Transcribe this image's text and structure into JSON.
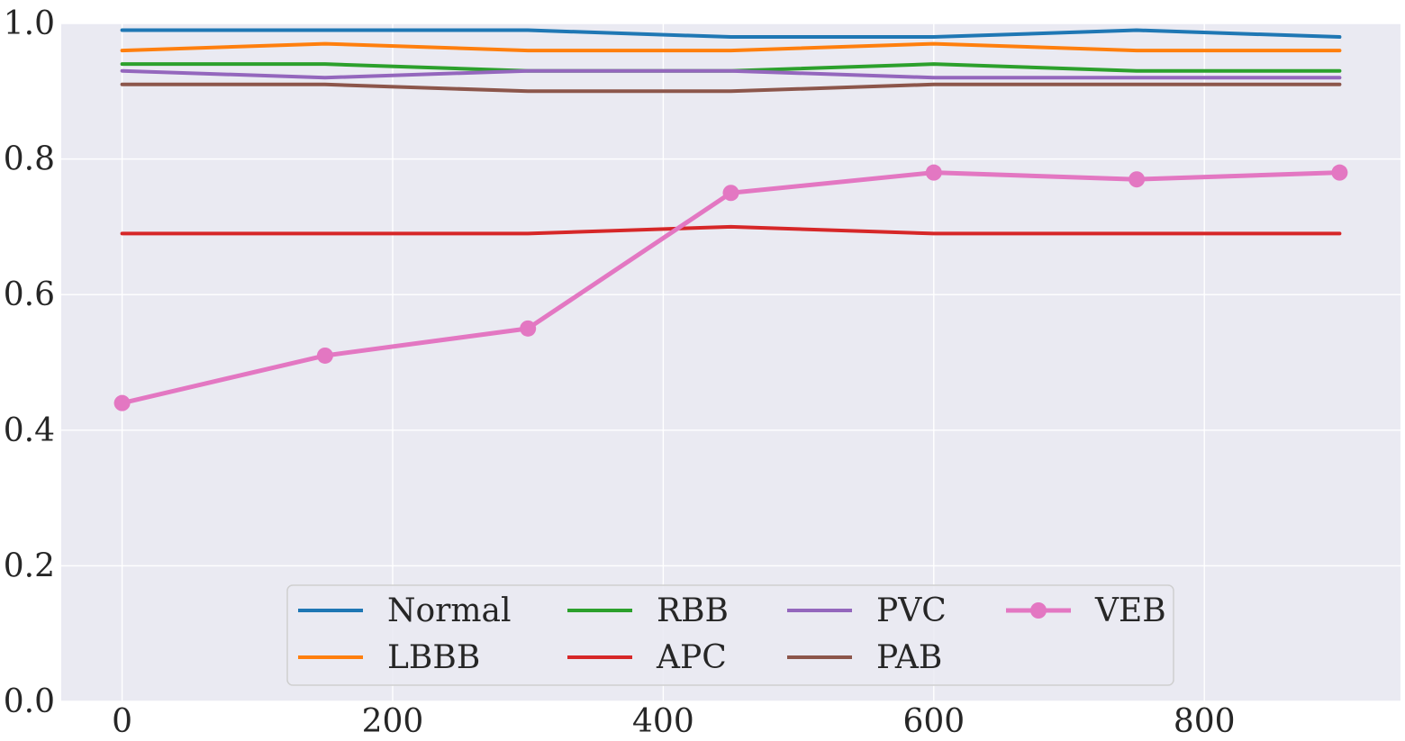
{
  "chart_data": {
    "type": "line",
    "title": "",
    "xlabel": "",
    "ylabel": "",
    "x": [
      0,
      150,
      300,
      450,
      600,
      750,
      900
    ],
    "xlim": [
      -45,
      945
    ],
    "ylim": [
      0.0,
      1.0
    ],
    "xticks": [
      0,
      200,
      400,
      600,
      800
    ],
    "xtick_labels": [
      "0",
      "200",
      "400",
      "600",
      "800"
    ],
    "yticks": [
      0.0,
      0.2,
      0.4,
      0.6,
      0.8,
      1.0
    ],
    "ytick_labels": [
      "0.0",
      "0.2",
      "0.4",
      "0.6",
      "0.8",
      "1.0"
    ],
    "grid": true,
    "legend_placement": "lower-center",
    "legend_columns": 4,
    "background": "#eaeaf2",
    "series": [
      {
        "name": "Normal",
        "color": "#1f77b4",
        "marker": "none",
        "values": [
          0.99,
          0.99,
          0.99,
          0.98,
          0.98,
          0.99,
          0.98
        ]
      },
      {
        "name": "LBBB",
        "color": "#ff7f0e",
        "marker": "none",
        "values": [
          0.96,
          0.97,
          0.96,
          0.96,
          0.97,
          0.96,
          0.96
        ]
      },
      {
        "name": "RBB",
        "color": "#2ca02c",
        "marker": "none",
        "values": [
          0.94,
          0.94,
          0.93,
          0.93,
          0.94,
          0.93,
          0.93
        ]
      },
      {
        "name": "APC",
        "color": "#d62728",
        "marker": "none",
        "values": [
          0.69,
          0.69,
          0.69,
          0.7,
          0.69,
          0.69,
          0.69
        ]
      },
      {
        "name": "PVC",
        "color": "#9467bd",
        "marker": "none",
        "values": [
          0.93,
          0.92,
          0.93,
          0.93,
          0.92,
          0.92,
          0.92
        ]
      },
      {
        "name": "PAB",
        "color": "#8c564b",
        "marker": "none",
        "values": [
          0.91,
          0.91,
          0.9,
          0.9,
          0.91,
          0.91,
          0.91
        ]
      },
      {
        "name": "VEB",
        "color": "#e377c2",
        "marker": "circle",
        "values": [
          0.44,
          0.51,
          0.55,
          0.75,
          0.78,
          0.77,
          0.78
        ]
      }
    ]
  }
}
